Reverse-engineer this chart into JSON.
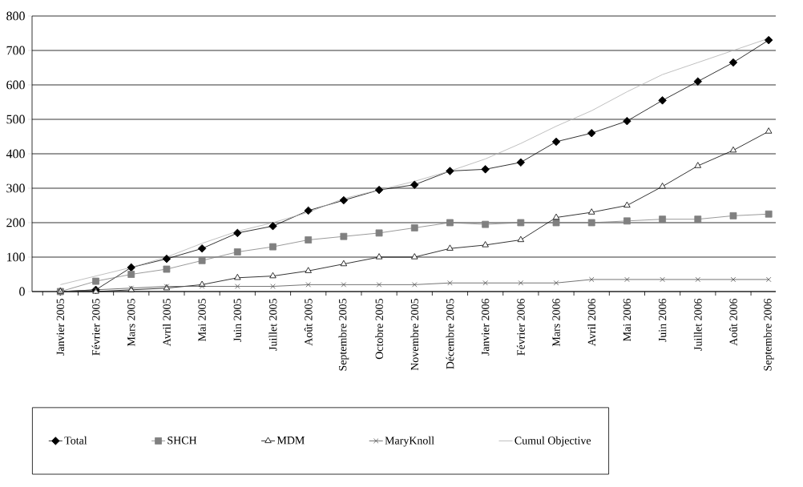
{
  "chart_data": {
    "type": "line",
    "categories": [
      "Janvier 2005",
      "Février 2005",
      "Mars 2005",
      "Avril 2005",
      "Mai 2005",
      "Juin 2005",
      "Juillet 2005",
      "Août 2005",
      "Septembre 2005",
      "Octobre 2005",
      "Novembre 2005",
      "Décembre 2005",
      "Janvier 2006",
      "Février 2006",
      "Mars 2006",
      "Avril 2006",
      "Mai 2006",
      "Juin 2006",
      "Juillet 2006",
      "Août 2006",
      "Septembre 2006"
    ],
    "series": [
      {
        "name": "Total",
        "color": "#000000",
        "marker": "diamond",
        "values": [
          0,
          5,
          70,
          95,
          125,
          170,
          190,
          235,
          265,
          295,
          310,
          350,
          355,
          375,
          435,
          460,
          495,
          555,
          610,
          665,
          730
        ]
      },
      {
        "name": "SHCH",
        "color": "#808080",
        "marker": "square",
        "values": [
          0,
          30,
          50,
          65,
          90,
          115,
          130,
          150,
          160,
          170,
          185,
          200,
          195,
          200,
          200,
          200,
          205,
          210,
          210,
          220,
          225
        ]
      },
      {
        "name": "MDM",
        "color": "#000000",
        "marker": "triangle",
        "values": [
          0,
          0,
          5,
          10,
          20,
          40,
          45,
          60,
          80,
          100,
          100,
          125,
          135,
          150,
          215,
          230,
          250,
          305,
          365,
          410,
          465
        ]
      },
      {
        "name": "MaryKnoll",
        "color": "#505050",
        "marker": "cross",
        "values": [
          0,
          5,
          10,
          15,
          15,
          15,
          15,
          20,
          20,
          20,
          20,
          25,
          25,
          25,
          25,
          35,
          35,
          35,
          35,
          35,
          35
        ]
      },
      {
        "name": "Cumul Objective",
        "color": "#b0b0b0",
        "marker": "none",
        "values": [
          20,
          45,
          70,
          100,
          140,
          175,
          200,
          230,
          270,
          295,
          320,
          350,
          385,
          430,
          480,
          525,
          580,
          630,
          665,
          700,
          735
        ]
      }
    ],
    "ylim": [
      0,
      800
    ],
    "yticks": [
      0,
      100,
      200,
      300,
      400,
      500,
      600,
      700,
      800
    ],
    "grid": "y",
    "legend": "bottom",
    "line_style": "solid"
  }
}
